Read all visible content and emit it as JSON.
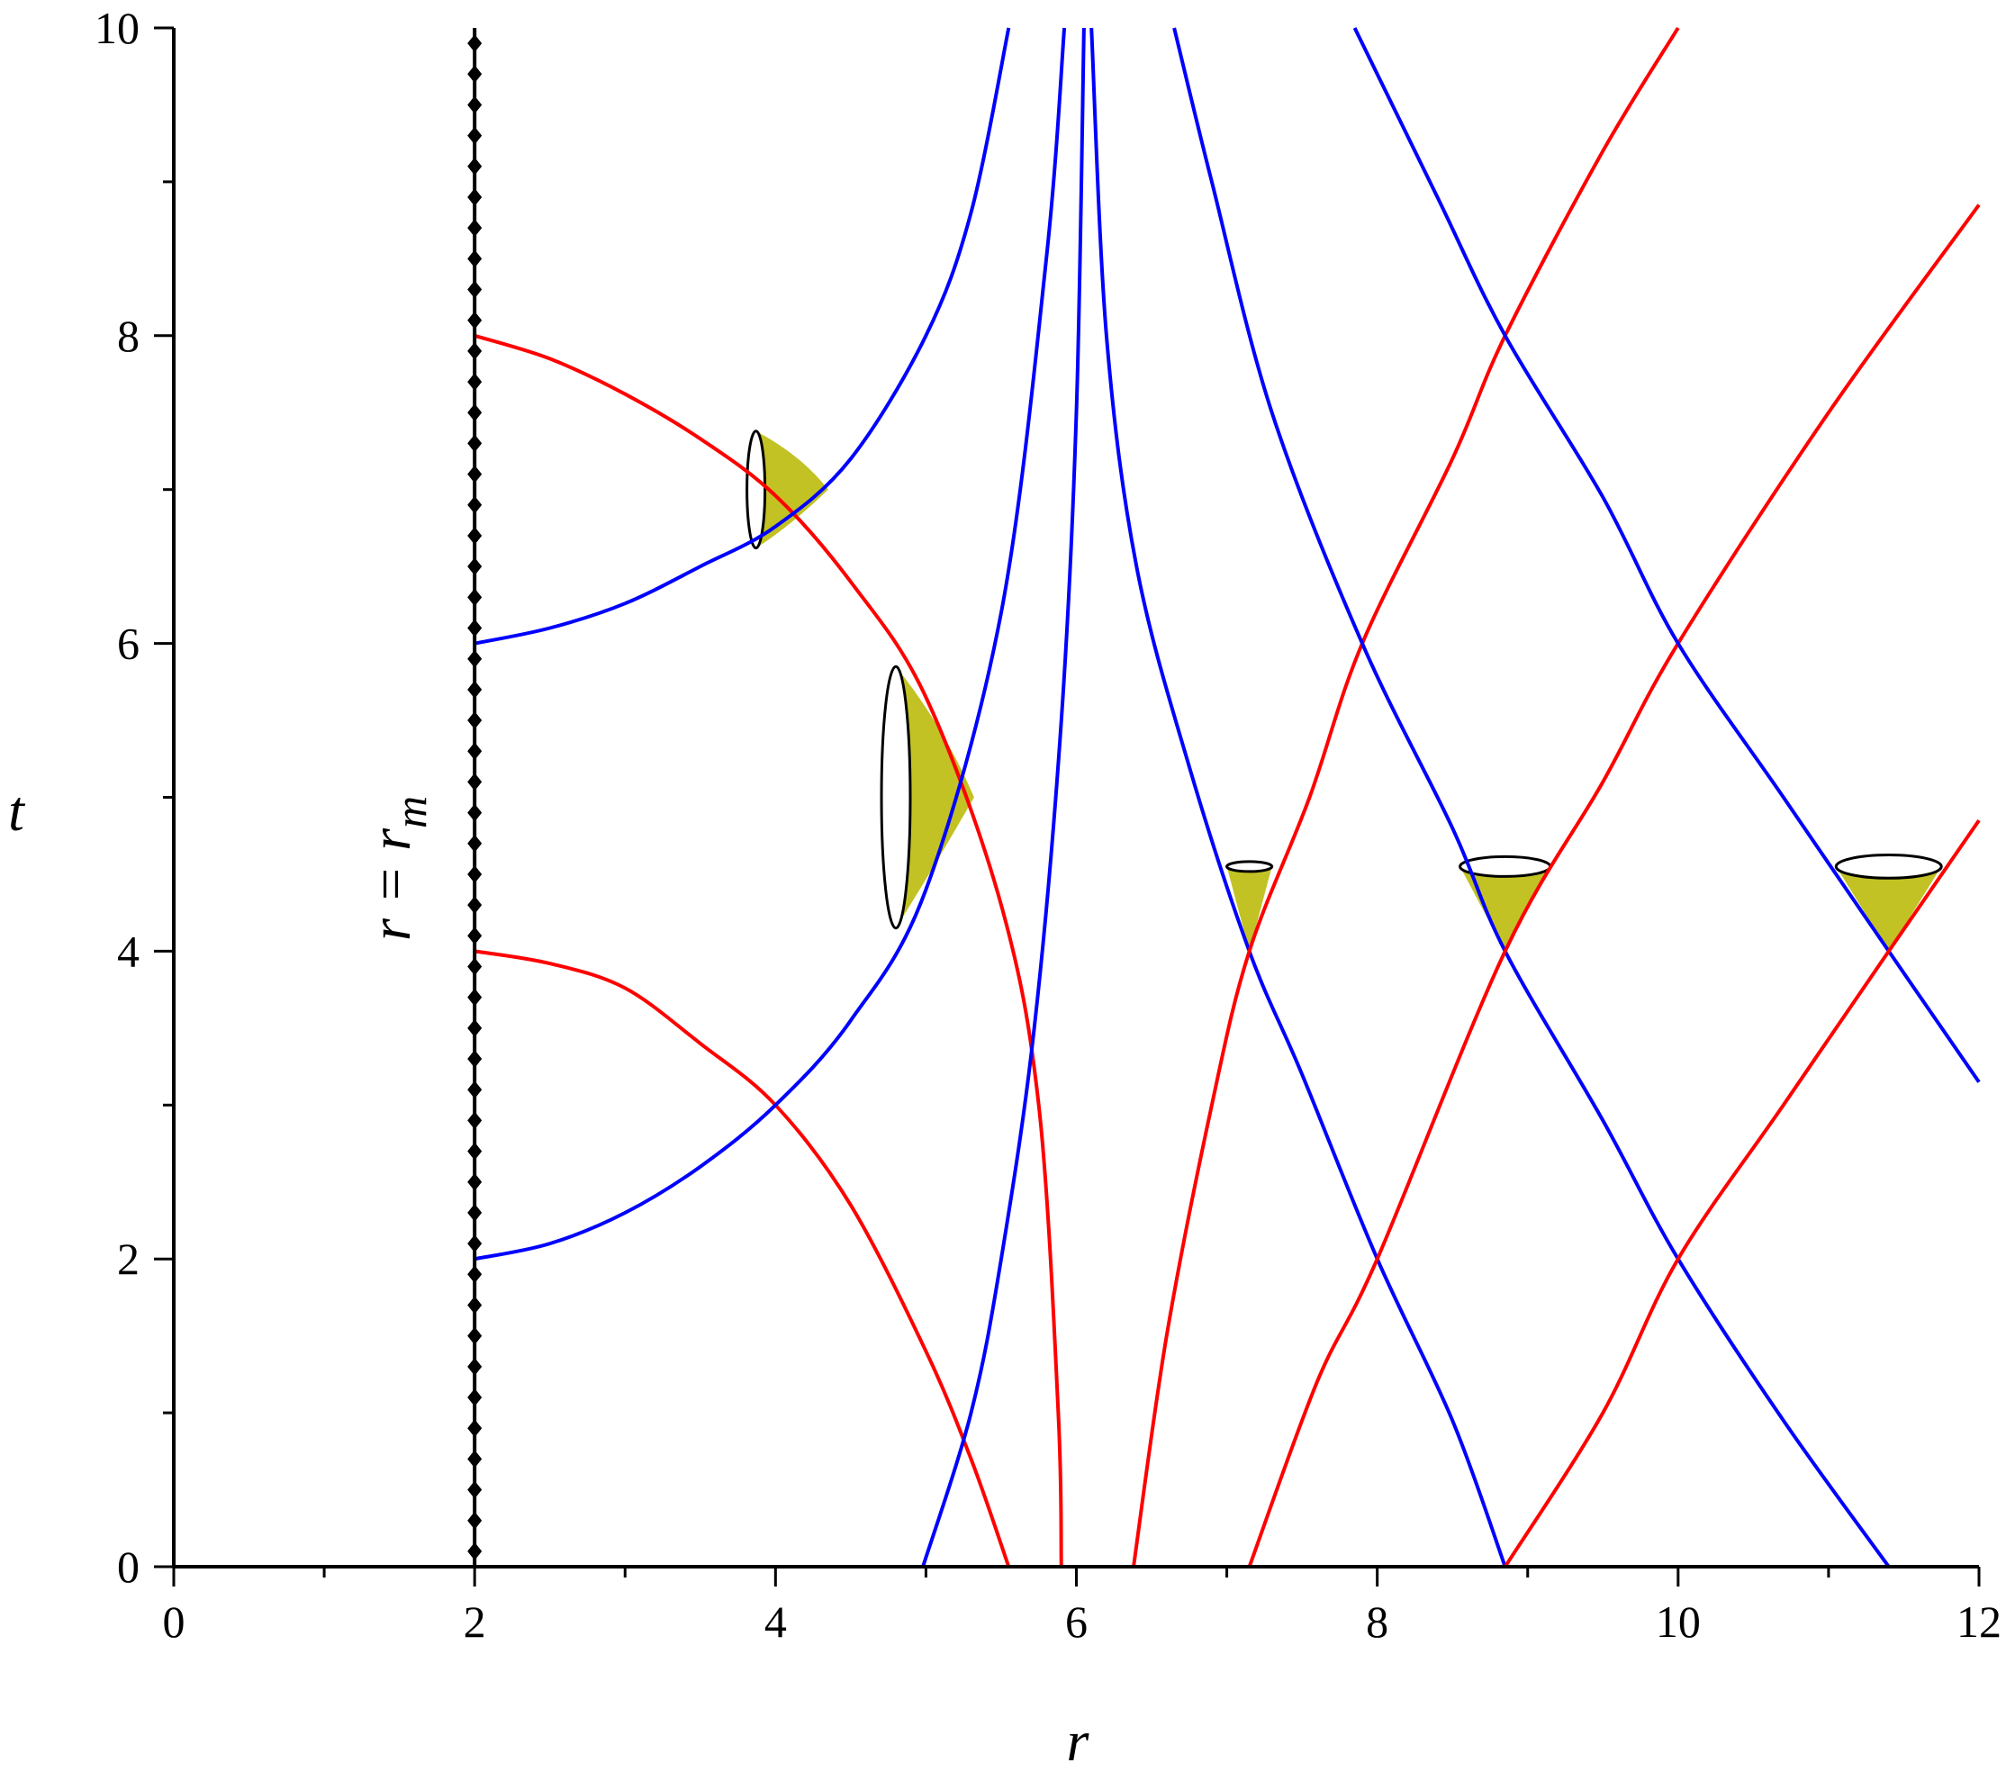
{
  "chart_data": {
    "type": "line",
    "title": "",
    "xlabel": "r",
    "ylabel": "t",
    "xlim": [
      0,
      12
    ],
    "ylim": [
      0,
      10
    ],
    "grid": false,
    "legend": "none",
    "x_ticks": [
      0,
      2,
      4,
      6,
      8,
      10,
      12
    ],
    "y_ticks": [
      0,
      2,
      4,
      6,
      8,
      10
    ],
    "x_minor_step": 1,
    "y_minor_step": 1,
    "colors": {
      "red": "#ff0000",
      "blue": "#0000ff",
      "black": "#000000",
      "cone_fill": "#c2c224"
    },
    "annotation": {
      "text_main": "r = r",
      "text_sub": "m",
      "x": 2.0
    },
    "boundary_line": {
      "x": 2.0,
      "y_start": 0,
      "y_end": 10,
      "color": "#000000"
    },
    "series": [
      {
        "color": "#ff0000",
        "points": [
          [
            2.0,
            8.0
          ],
          [
            2.5,
            7.85
          ],
          [
            3.0,
            7.62
          ],
          [
            3.5,
            7.33
          ],
          [
            4.0,
            6.96
          ],
          [
            4.5,
            6.4
          ],
          [
            5.0,
            5.65
          ],
          [
            5.5,
            4.3
          ],
          [
            5.75,
            3.0
          ],
          [
            5.88,
            1.0
          ],
          [
            5.9,
            0.0
          ]
        ]
      },
      {
        "color": "#0000ff",
        "points": [
          [
            2.0,
            6.0
          ],
          [
            2.5,
            6.1
          ],
          [
            3.0,
            6.26
          ],
          [
            3.5,
            6.5
          ],
          [
            4.0,
            6.76
          ],
          [
            4.5,
            7.2
          ],
          [
            5.0,
            8.0
          ],
          [
            5.3,
            8.8
          ],
          [
            5.55,
            10.0
          ]
        ]
      },
      {
        "color": "#ff0000",
        "points": [
          [
            2.0,
            4.0
          ],
          [
            2.5,
            3.92
          ],
          [
            3.0,
            3.76
          ],
          [
            3.5,
            3.4
          ],
          [
            4.0,
            3.0
          ],
          [
            4.5,
            2.35
          ],
          [
            5.0,
            1.4
          ],
          [
            5.3,
            0.7
          ],
          [
            5.55,
            0.0
          ]
        ]
      },
      {
        "color": "#0000ff",
        "points": [
          [
            2.0,
            2.0
          ],
          [
            2.5,
            2.1
          ],
          [
            3.0,
            2.3
          ],
          [
            3.5,
            2.6
          ],
          [
            4.0,
            3.0
          ],
          [
            4.5,
            3.55
          ],
          [
            5.0,
            4.4
          ],
          [
            5.5,
            6.2
          ],
          [
            5.8,
            8.5
          ],
          [
            5.92,
            10.0
          ]
        ]
      },
      {
        "color": "#0000ff",
        "points": [
          [
            4.98,
            0.0
          ],
          [
            5.3,
            1.0
          ],
          [
            5.5,
            2.0
          ],
          [
            5.72,
            3.5
          ],
          [
            5.9,
            5.5
          ],
          [
            6.0,
            7.5
          ],
          [
            6.05,
            10.0
          ]
        ]
      },
      {
        "color": "#0000ff",
        "points": [
          [
            6.1,
            10.0
          ],
          [
            6.2,
            8.0
          ],
          [
            6.4,
            6.5
          ],
          [
            6.75,
            5.2
          ],
          [
            7.15,
            4.0
          ],
          [
            7.5,
            3.2
          ],
          [
            8.0,
            2.0
          ],
          [
            8.5,
            0.95
          ],
          [
            8.85,
            0.0
          ]
        ]
      },
      {
        "color": "#ff0000",
        "points": [
          [
            6.38,
            0.0
          ],
          [
            6.6,
            1.5
          ],
          [
            6.9,
            3.0
          ],
          [
            7.15,
            4.0
          ],
          [
            7.55,
            5.0
          ],
          [
            7.9,
            6.0
          ],
          [
            8.5,
            7.2
          ],
          [
            8.85,
            8.0
          ],
          [
            9.5,
            9.2
          ],
          [
            10.0,
            10.0
          ]
        ]
      },
      {
        "color": "#0000ff",
        "points": [
          [
            6.65,
            10.0
          ],
          [
            6.9,
            9.0
          ],
          [
            7.3,
            7.5
          ],
          [
            7.9,
            6.0
          ],
          [
            8.5,
            4.8
          ],
          [
            8.85,
            4.0
          ],
          [
            9.5,
            2.9
          ],
          [
            10.0,
            2.0
          ],
          [
            10.7,
            0.95
          ],
          [
            11.4,
            0.0
          ]
        ]
      },
      {
        "color": "#ff0000",
        "points": [
          [
            7.15,
            0.0
          ],
          [
            7.6,
            1.2
          ],
          [
            8.0,
            2.0
          ],
          [
            8.85,
            4.0
          ],
          [
            9.5,
            5.1
          ],
          [
            10.0,
            6.0
          ],
          [
            11.0,
            7.5
          ],
          [
            12.0,
            8.85
          ]
        ]
      },
      {
        "color": "#0000ff",
        "points": [
          [
            7.85,
            10.0
          ],
          [
            8.4,
            8.9
          ],
          [
            8.85,
            8.0
          ],
          [
            9.5,
            6.95
          ],
          [
            10.0,
            6.0
          ],
          [
            10.7,
            5.0
          ],
          [
            11.4,
            4.0
          ],
          [
            12.0,
            3.15
          ]
        ]
      },
      {
        "color": "#ff0000",
        "points": [
          [
            8.85,
            0.0
          ],
          [
            9.5,
            1.0
          ],
          [
            10.0,
            2.0
          ],
          [
            10.7,
            3.0
          ],
          [
            11.4,
            4.0
          ],
          [
            12.0,
            4.85
          ]
        ]
      }
    ],
    "cones": [
      {
        "type": "horizontal",
        "apex": [
          4.35,
          7.0
        ],
        "base_x": 3.87,
        "base_y_range": [
          6.62,
          7.38
        ],
        "fill_bounds": [
          [
            3.87,
            7.38
          ],
          [
            4.35,
            7.0
          ],
          [
            3.87,
            6.62
          ]
        ]
      },
      {
        "type": "horizontal",
        "apex": [
          5.32,
          5.0
        ],
        "base_x": 4.8,
        "base_y_range": [
          4.15,
          5.85
        ],
        "fill_bounds": [
          [
            4.8,
            5.85
          ],
          [
            5.32,
            5.0
          ],
          [
            4.8,
            4.15
          ]
        ]
      },
      {
        "type": "vertical",
        "apex": [
          7.15,
          4.0
        ],
        "base_y": 4.55,
        "base_x_range": [
          7.0,
          7.3
        ]
      },
      {
        "type": "vertical",
        "apex": [
          8.85,
          4.0
        ],
        "base_y": 4.55,
        "base_x_range": [
          8.55,
          9.15
        ]
      },
      {
        "type": "vertical",
        "apex": [
          11.4,
          4.0
        ],
        "base_y": 4.55,
        "base_x_range": [
          11.05,
          11.75
        ]
      }
    ]
  }
}
